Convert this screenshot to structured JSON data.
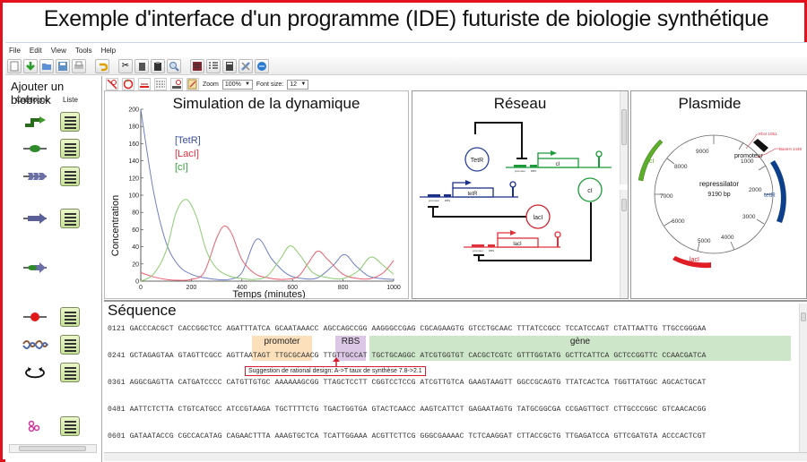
{
  "page_title": "Exemple d'interface d'un programme (IDE) futuriste de biologie synthétique",
  "menu": [
    "File",
    "Edit",
    "View",
    "Tools",
    "Help"
  ],
  "toolbar_icons": [
    "new-file-icon",
    "download-icon",
    "open-folder-icon",
    "save-icon",
    "print-icon",
    "undo-icon",
    "cut-icon",
    "copy-icon",
    "paste-icon",
    "find-icon",
    "grid-icon",
    "list-icon",
    "calculator-icon",
    "tools-icon",
    "web-icon"
  ],
  "sub_toolbar": {
    "icons": [
      "no-select-icon",
      "circle-tool-icon",
      "seq-tool-icon",
      "align-tool-icon",
      "text-tool-icon",
      "edit-tool-icon"
    ],
    "zoom_label": "Zoom",
    "zoom_value": "100%",
    "font_size_label": "Font size:",
    "font_size_value": "12"
  },
  "sidebar": {
    "title": "Ajouter un biobrick",
    "col_catalogue": "Catalogue",
    "col_liste": "Liste",
    "items": [
      {
        "name": "promoter",
        "has_list": true
      },
      {
        "name": "rbs",
        "has_list": true
      },
      {
        "name": "protein-coding",
        "has_list": true
      },
      {
        "name": "reporter",
        "has_list": true
      },
      {
        "name": "composite",
        "has_list": false
      },
      {
        "name": "terminator",
        "has_list": true
      },
      {
        "name": "dna",
        "has_list": true
      },
      {
        "name": "plasmid-backbone",
        "has_list": true
      },
      {
        "name": "molecule",
        "has_list": true
      }
    ]
  },
  "simulation": {
    "title": "Simulation de la dynamique",
    "legend": [
      {
        "label": "[TetR]",
        "color": "#3a4fa0"
      },
      {
        "label": "[LacI]",
        "color": "#e03040"
      },
      {
        "label": "[cI]",
        "color": "#3aa040"
      }
    ]
  },
  "chart_data": {
    "type": "line",
    "title": "Simulation de la dynamique",
    "xlabel": "Temps (minutes)",
    "ylabel": "Concentration",
    "xlim": [
      0,
      1000
    ],
    "ylim": [
      0,
      200
    ],
    "xticks": [
      0,
      200,
      400,
      600,
      800,
      1000
    ],
    "yticks": [
      0,
      20,
      40,
      60,
      80,
      100,
      120,
      140,
      160,
      180,
      200
    ],
    "series": [
      {
        "name": "[TetR]",
        "color": "#6f7fc4",
        "x": [
          0,
          50,
          100,
          150,
          200,
          250,
          300,
          350,
          400,
          460,
          520,
          580,
          640,
          700,
          760,
          805,
          850,
          900,
          950,
          1000
        ],
        "values": [
          200,
          105,
          45,
          18,
          8,
          4,
          2,
          2,
          10,
          49,
          25,
          8,
          3,
          4,
          18,
          31,
          18,
          6,
          3,
          2
        ]
      },
      {
        "name": "[LacI]",
        "color": "#e86070",
        "x": [
          0,
          50,
          100,
          150,
          200,
          250,
          300,
          330,
          360,
          400,
          450,
          500,
          560,
          620,
          660,
          700,
          740,
          800,
          860,
          910,
          960,
          1000
        ],
        "values": [
          10,
          5,
          2,
          1,
          2,
          10,
          50,
          64,
          55,
          25,
          9,
          4,
          2,
          5,
          20,
          35,
          25,
          8,
          3,
          3,
          10,
          24
        ]
      },
      {
        "name": "[cI]",
        "color": "#8ccc70",
        "x": [
          0,
          50,
          100,
          140,
          180,
          220,
          260,
          300,
          350,
          400,
          450,
          500,
          550,
          590,
          630,
          680,
          740,
          800,
          860,
          910,
          960,
          1000
        ],
        "values": [
          0,
          8,
          35,
          80,
          95,
          75,
          35,
          15,
          6,
          3,
          2,
          6,
          25,
          41,
          30,
          10,
          4,
          3,
          12,
          28,
          18,
          8
        ]
      }
    ]
  },
  "network": {
    "title": "Réseau",
    "proteins": [
      "TetR",
      "lacI",
      "cI"
    ],
    "genes": [
      "cI",
      "tetR",
      "lacI"
    ],
    "part_labels": {
      "promoter": "promoter",
      "rbs": "RBS"
    }
  },
  "plasmid": {
    "title": "Plasmide",
    "name": "repressilator",
    "size": "9190 bp",
    "ticks": [
      "1000",
      "2000",
      "3000",
      "4000",
      "5000",
      "6000",
      "7000",
      "8000",
      "9000"
    ],
    "features": [
      {
        "label": "promoteur",
        "color": "#111111"
      },
      {
        "label": "tetR",
        "color": "#0d3f8a"
      },
      {
        "label": "lacI",
        "color": "#e01c24"
      },
      {
        "label": "cI",
        "color": "#5cae2a"
      }
    ],
    "sites": [
      "XhoI 1051",
      "BamHI 1449"
    ]
  },
  "sequence": {
    "title": "Séquence",
    "lines": [
      {
        "pos": "0121",
        "seq": "GACCCACGCT CACCGGCTCC AGATTTATCA GCAATAAACC AGCCAGCCGG AAGGGCCGAG CGCAGAAGTG GTCCTGCAAC TTTATCCGCC TCCATCCAGT CTATTAATTG TTGCCGGGAA"
      },
      {
        "pos": "0241",
        "seq": "GCTAGAGTAA GTAGTTCGCC AGTTAATAGT TTGCGCAACG TTGTTGCCAT TGCTGCAGGC ATCGTGGTGT CACGCTCGTC GTTTGGTATG GCTTCATTCA GCTCCGGTTC CCAACGATCA"
      },
      {
        "pos": "0361",
        "seq": "AGGCGAGTTA CATGATCCCC CATGTTGTGC AAAAAAGCGG TTAGCTCCTT CGGTCCTCCG ATCGTTGTCA GAAGTAAGTT GGCCGCAGTG TTATCACTCA TGGTTATGGC AGCACTGCAT"
      },
      {
        "pos": "0481",
        "seq": "AATTCTCTTA CTGTCATGCC ATCCGTAAGA TGCTTTTCTG TGACTGGTGA GTACTCAACC AAGTCATTCT GAGAATAGTG TATGCGGCGA CCGAGTTGCT CTTGCCCGGC GTCAACACGG"
      },
      {
        "pos": "0601",
        "seq": "GATAATACCG CGCCACATAG CAGAACTTTA AAAGTGCTCA TCATTGGAAA ACGTTCTTCG GGGCGAAAAC TCTCAAGGAT CTTACCGCTG TTGAGATCCA GTTCGATGTA ACCCACTCGT"
      }
    ],
    "annotations": [
      {
        "label": "promoter",
        "color": "#fbe0bb"
      },
      {
        "label": "RBS",
        "color": "#dcc8e6"
      },
      {
        "label": "gène",
        "color": "#cde5c8"
      }
    ],
    "suggestion": "Suggestion de rational design: A->T taux de synthèse 7.8->2.1"
  }
}
